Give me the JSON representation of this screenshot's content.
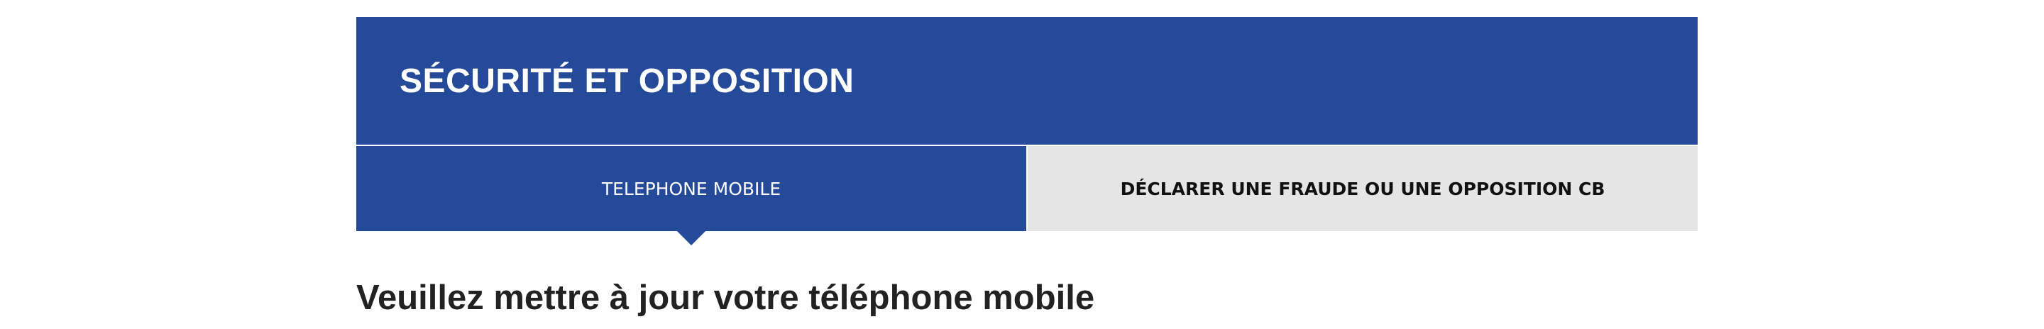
{
  "banner": {
    "title": "SÉCURITÉ ET OPPOSITION"
  },
  "tabs": [
    {
      "label": "TELEPHONE MOBILE",
      "active": true
    },
    {
      "label": "DÉCLARER UNE FRAUDE OU UNE OPPOSITION CB",
      "active": false
    }
  ],
  "main": {
    "heading": "Veuillez mettre à jour votre téléphone mobile"
  },
  "colors": {
    "brand_blue": "#244a99",
    "inactive_tab_bg": "#e5e5e5",
    "heading_text": "#222222"
  }
}
